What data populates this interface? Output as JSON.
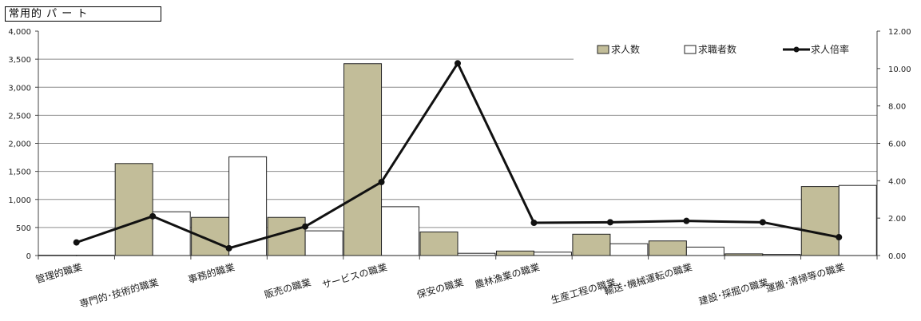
{
  "chart_data": {
    "title": "常用的 パ ー ト",
    "type": "bar+line",
    "categories": [
      "管理的職業",
      "専門的･技術的職業",
      "事務的職業",
      "販売の職業",
      "サービスの職業",
      "保安の職業",
      "農林漁業の職業",
      "生産工程の職業",
      "輸送･機械運転の職業",
      "建設･採掘の職業",
      "運搬･清掃等の職業"
    ],
    "series": [
      {
        "name": "求人数",
        "type": "bar",
        "axis": "left",
        "color": "#c2bd99",
        "values": [
          5,
          1640,
          680,
          680,
          3420,
          420,
          80,
          380,
          260,
          30,
          1230
        ]
      },
      {
        "name": "求職者数",
        "type": "bar",
        "axis": "left",
        "color": "#ffffff",
        "values": [
          5,
          780,
          1760,
          440,
          870,
          40,
          60,
          210,
          150,
          20,
          1250
        ]
      },
      {
        "name": "求人倍率",
        "type": "line",
        "axis": "right",
        "color": "#111111",
        "values": [
          0.7,
          2.1,
          0.39,
          1.55,
          3.93,
          10.28,
          1.75,
          1.78,
          1.85,
          1.78,
          0.98
        ]
      }
    ],
    "y_left": {
      "min": 0,
      "max": 4000,
      "ticks": [
        "0",
        "500",
        "1,000",
        "1,500",
        "2,000",
        "2,500",
        "3,000",
        "3,500",
        "4,000"
      ]
    },
    "y_right": {
      "min": 0,
      "max": 12,
      "ticks": [
        "0.00",
        "2.00",
        "4.00",
        "6.00",
        "8.00",
        "10.00",
        "12.00"
      ]
    },
    "grid": true,
    "legend": "top-right"
  }
}
